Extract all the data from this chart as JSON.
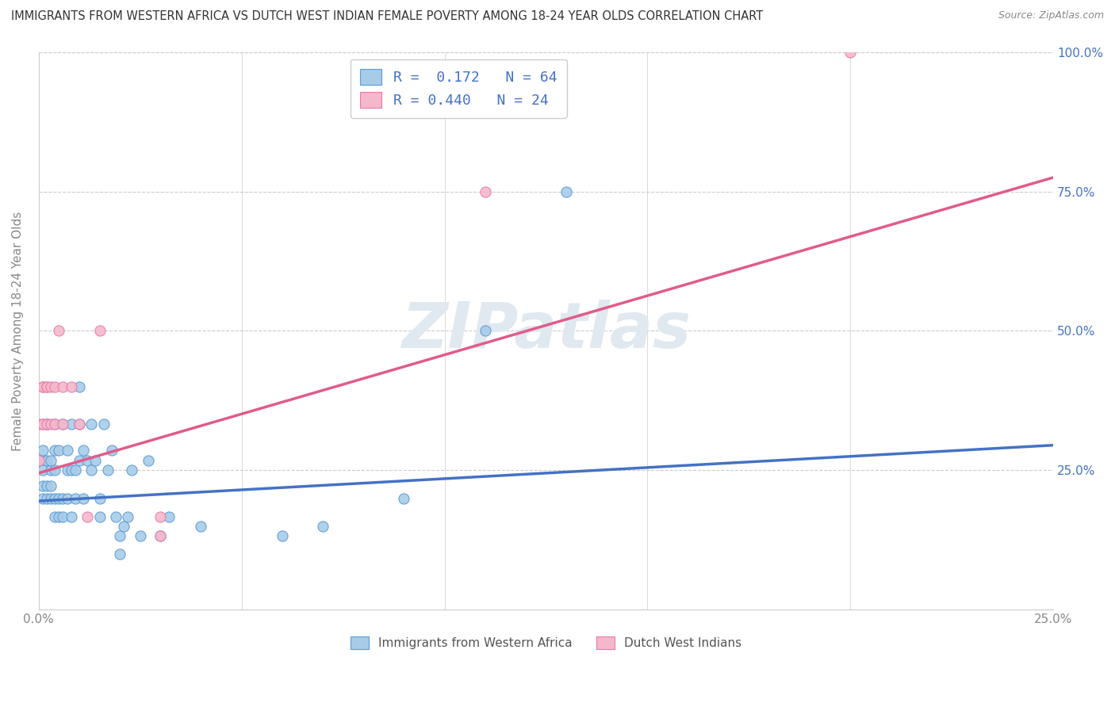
{
  "title": "IMMIGRANTS FROM WESTERN AFRICA VS DUTCH WEST INDIAN FEMALE POVERTY AMONG 18-24 YEAR OLDS CORRELATION CHART",
  "source": "Source: ZipAtlas.com",
  "ylabel": "Female Poverty Among 18-24 Year Olds",
  "xlim": [
    0.0,
    0.25
  ],
  "ylim": [
    0.0,
    1.0
  ],
  "blue_R": "0.172",
  "blue_N": "64",
  "pink_R": "0.440",
  "pink_N": "24",
  "blue_color": "#a8cce8",
  "pink_color": "#f5b8cb",
  "blue_edge_color": "#5b9bd5",
  "pink_edge_color": "#e87aaa",
  "blue_line_color": "#4472c4",
  "pink_line_color": "#e05c8a",
  "watermark": "ZIPatlas",
  "blue_scatter": [
    [
      0.0,
      0.267
    ],
    [
      0.001,
      0.267
    ],
    [
      0.001,
      0.222
    ],
    [
      0.001,
      0.25
    ],
    [
      0.001,
      0.286
    ],
    [
      0.001,
      0.2
    ],
    [
      0.002,
      0.333
    ],
    [
      0.002,
      0.222
    ],
    [
      0.002,
      0.2
    ],
    [
      0.002,
      0.267
    ],
    [
      0.002,
      0.333
    ],
    [
      0.003,
      0.25
    ],
    [
      0.003,
      0.267
    ],
    [
      0.003,
      0.222
    ],
    [
      0.003,
      0.2
    ],
    [
      0.004,
      0.167
    ],
    [
      0.004,
      0.2
    ],
    [
      0.004,
      0.25
    ],
    [
      0.004,
      0.286
    ],
    [
      0.004,
      0.333
    ],
    [
      0.005,
      0.2
    ],
    [
      0.005,
      0.167
    ],
    [
      0.005,
      0.286
    ],
    [
      0.006,
      0.333
    ],
    [
      0.006,
      0.2
    ],
    [
      0.006,
      0.167
    ],
    [
      0.007,
      0.25
    ],
    [
      0.007,
      0.2
    ],
    [
      0.007,
      0.286
    ],
    [
      0.008,
      0.333
    ],
    [
      0.008,
      0.25
    ],
    [
      0.008,
      0.167
    ],
    [
      0.009,
      0.25
    ],
    [
      0.009,
      0.2
    ],
    [
      0.01,
      0.4
    ],
    [
      0.01,
      0.333
    ],
    [
      0.01,
      0.267
    ],
    [
      0.011,
      0.2
    ],
    [
      0.011,
      0.286
    ],
    [
      0.012,
      0.267
    ],
    [
      0.013,
      0.333
    ],
    [
      0.013,
      0.25
    ],
    [
      0.014,
      0.267
    ],
    [
      0.015,
      0.2
    ],
    [
      0.015,
      0.167
    ],
    [
      0.016,
      0.333
    ],
    [
      0.017,
      0.25
    ],
    [
      0.018,
      0.286
    ],
    [
      0.019,
      0.167
    ],
    [
      0.02,
      0.133
    ],
    [
      0.02,
      0.1
    ],
    [
      0.021,
      0.15
    ],
    [
      0.022,
      0.167
    ],
    [
      0.023,
      0.25
    ],
    [
      0.025,
      0.133
    ],
    [
      0.027,
      0.267
    ],
    [
      0.03,
      0.133
    ],
    [
      0.032,
      0.167
    ],
    [
      0.04,
      0.15
    ],
    [
      0.06,
      0.133
    ],
    [
      0.07,
      0.15
    ],
    [
      0.09,
      0.2
    ],
    [
      0.11,
      0.5
    ],
    [
      0.13,
      0.75
    ]
  ],
  "pink_scatter": [
    [
      0.0,
      0.267
    ],
    [
      0.0,
      0.333
    ],
    [
      0.001,
      0.4
    ],
    [
      0.001,
      0.333
    ],
    [
      0.001,
      0.4
    ],
    [
      0.001,
      0.333
    ],
    [
      0.002,
      0.4
    ],
    [
      0.002,
      0.333
    ],
    [
      0.002,
      0.4
    ],
    [
      0.003,
      0.4
    ],
    [
      0.003,
      0.333
    ],
    [
      0.004,
      0.4
    ],
    [
      0.004,
      0.333
    ],
    [
      0.005,
      0.5
    ],
    [
      0.006,
      0.333
    ],
    [
      0.006,
      0.4
    ],
    [
      0.008,
      0.4
    ],
    [
      0.01,
      0.333
    ],
    [
      0.012,
      0.167
    ],
    [
      0.015,
      0.5
    ],
    [
      0.03,
      0.167
    ],
    [
      0.03,
      0.133
    ],
    [
      0.11,
      0.75
    ],
    [
      0.2,
      1.0
    ]
  ],
  "blue_trend_x": [
    0.0,
    0.25
  ],
  "blue_trend_y": [
    0.195,
    0.295
  ],
  "pink_trend_x": [
    0.0,
    0.25
  ],
  "pink_trend_y": [
    0.245,
    0.775
  ],
  "background_color": "#ffffff",
  "grid_color": "#cccccc",
  "right_tick_color": "#4472c4",
  "left_tick_label_color": "#888888",
  "title_color": "#333333",
  "source_color": "#888888",
  "ylabel_color": "#888888"
}
